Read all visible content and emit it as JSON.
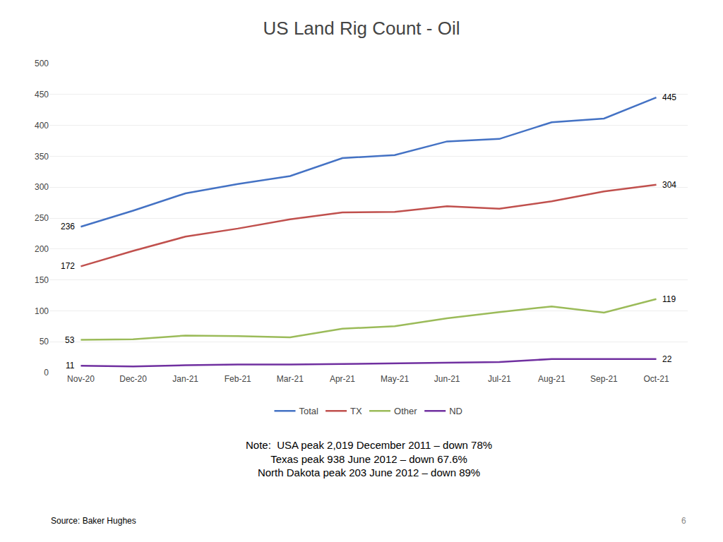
{
  "chart_data": {
    "type": "line",
    "title": "US Land Rig Count - Oil",
    "categories": [
      "Nov-20",
      "Dec-20",
      "Jan-21",
      "Feb-21",
      "Mar-21",
      "Apr-21",
      "May-21",
      "Jun-21",
      "Jul-21",
      "Aug-21",
      "Sep-21",
      "Oct-21"
    ],
    "series": [
      {
        "name": "Total",
        "color": "#4472C4",
        "values": [
          236,
          262,
          290,
          305,
          318,
          347,
          352,
          374,
          378,
          405,
          411,
          445
        ],
        "value_labels": [
          "236",
          null,
          null,
          null,
          null,
          null,
          null,
          null,
          null,
          null,
          null,
          "445"
        ]
      },
      {
        "name": "TX",
        "color": "#C0504D",
        "values": [
          172,
          197,
          220,
          233,
          248,
          259,
          260,
          269,
          265,
          277,
          293,
          304
        ],
        "value_labels": [
          "172",
          null,
          null,
          null,
          null,
          null,
          null,
          null,
          null,
          null,
          null,
          "304"
        ]
      },
      {
        "name": "Other",
        "color": "#9BBB59",
        "values": [
          53,
          54,
          60,
          59,
          57,
          71,
          75,
          88,
          98,
          107,
          97,
          119
        ],
        "value_labels": [
          "53",
          null,
          null,
          null,
          null,
          null,
          null,
          null,
          null,
          null,
          null,
          "119"
        ]
      },
      {
        "name": "ND",
        "color": "#7030A0",
        "values": [
          11,
          10,
          12,
          13,
          13,
          14,
          15,
          16,
          17,
          22,
          22,
          22
        ],
        "value_labels": [
          "11",
          null,
          null,
          null,
          null,
          null,
          null,
          null,
          null,
          null,
          null,
          "22"
        ]
      }
    ],
    "data_labels": true,
    "ylim": [
      0,
      500
    ],
    "yticks": [
      0,
      50,
      100,
      150,
      200,
      250,
      300,
      350,
      400,
      450,
      500
    ],
    "grid": true,
    "legend": "bottom",
    "annotations": [
      [
        "Note:  USA peak 2,019 December 2011 – down 78%",
        "Texas peak 938 June 2012 – down 67.6%",
        "North Dakota peak 203 June 2012 – down 89%"
      ],
      "Source: Baker Hughes",
      "6"
    ]
  }
}
